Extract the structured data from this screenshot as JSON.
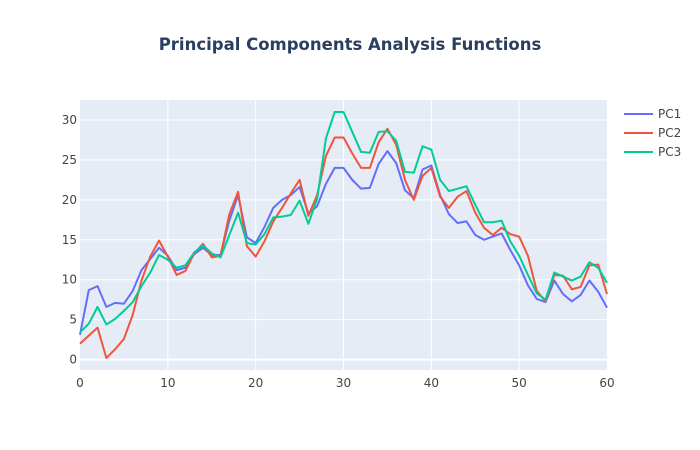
{
  "chart_data": {
    "type": "line",
    "title": "Principal Components Analysis Functions",
    "xlabel": "",
    "ylabel": "",
    "xlim": [
      0,
      60
    ],
    "ylim": [
      -1.3,
      32.5
    ],
    "xticks": [
      0,
      10,
      20,
      30,
      40,
      50,
      60
    ],
    "yticks": [
      0,
      5,
      10,
      15,
      20,
      25,
      30
    ],
    "grid": true,
    "legend_position": "top-right",
    "x": [
      0,
      1,
      2,
      3,
      4,
      5,
      6,
      7,
      8,
      9,
      10,
      11,
      12,
      13,
      14,
      15,
      16,
      17,
      18,
      19,
      20,
      21,
      22,
      23,
      24,
      25,
      26,
      27,
      28,
      29,
      30,
      31,
      32,
      33,
      34,
      35,
      36,
      37,
      38,
      39,
      40,
      41,
      42,
      43,
      44,
      45,
      46,
      47,
      48,
      49,
      50,
      51,
      52,
      53,
      54,
      55,
      56,
      57,
      58,
      59,
      60
    ],
    "series": [
      {
        "name": "PC1",
        "color": "#636efa",
        "values": [
          3.1,
          8.7,
          9.2,
          6.6,
          7.1,
          7.0,
          8.6,
          11.2,
          12.6,
          14.0,
          13.0,
          11.2,
          11.5,
          13.2,
          14.0,
          13.1,
          13.1,
          17.4,
          20.6,
          15.3,
          14.6,
          16.6,
          19.0,
          20.0,
          20.6,
          21.6,
          18.3,
          19.2,
          22.0,
          24.0,
          24.0,
          22.5,
          21.4,
          21.5,
          24.5,
          26.1,
          24.6,
          21.2,
          20.2,
          23.8,
          24.3,
          20.6,
          18.2,
          17.1,
          17.3,
          15.6,
          15.0,
          15.4,
          15.8,
          13.7,
          11.8,
          9.3,
          7.6,
          7.2,
          9.9,
          8.2,
          7.3,
          8.1,
          9.9,
          8.5,
          6.5
        ]
      },
      {
        "name": "PC2",
        "color": "#ef553b",
        "values": [
          2.0,
          3.0,
          4.0,
          0.2,
          1.3,
          2.6,
          5.6,
          9.9,
          12.9,
          14.9,
          12.9,
          10.6,
          11.1,
          13.3,
          14.5,
          12.8,
          13.0,
          18.2,
          21.0,
          14.2,
          12.9,
          14.8,
          17.3,
          19.0,
          20.8,
          22.5,
          18.0,
          20.6,
          25.5,
          27.8,
          27.8,
          25.8,
          24.0,
          24.0,
          27.2,
          28.9,
          26.9,
          22.5,
          20.0,
          23.0,
          24.0,
          20.4,
          19.0,
          20.4,
          21.1,
          18.4,
          16.5,
          15.6,
          16.5,
          15.7,
          15.4,
          13.0,
          8.6,
          7.3,
          10.6,
          10.5,
          8.8,
          9.1,
          11.8,
          11.9,
          8.2
        ]
      },
      {
        "name": "PC3",
        "color": "#00cc96",
        "values": [
          3.4,
          4.5,
          6.6,
          4.4,
          5.1,
          6.1,
          7.2,
          9.2,
          10.9,
          13.1,
          12.5,
          11.5,
          11.8,
          13.4,
          14.3,
          13.3,
          12.8,
          15.6,
          18.4,
          14.6,
          14.4,
          15.7,
          17.8,
          17.9,
          18.1,
          19.9,
          17.0,
          20.1,
          27.7,
          31.0,
          31.0,
          28.5,
          26.0,
          25.9,
          28.5,
          28.6,
          27.4,
          23.5,
          23.4,
          26.7,
          26.3,
          22.5,
          21.1,
          21.4,
          21.7,
          19.4,
          17.2,
          17.2,
          17.4,
          14.8,
          13.0,
          10.6,
          8.3,
          7.5,
          10.9,
          10.4,
          9.9,
          10.4,
          12.2,
          11.5,
          9.6
        ]
      }
    ]
  }
}
